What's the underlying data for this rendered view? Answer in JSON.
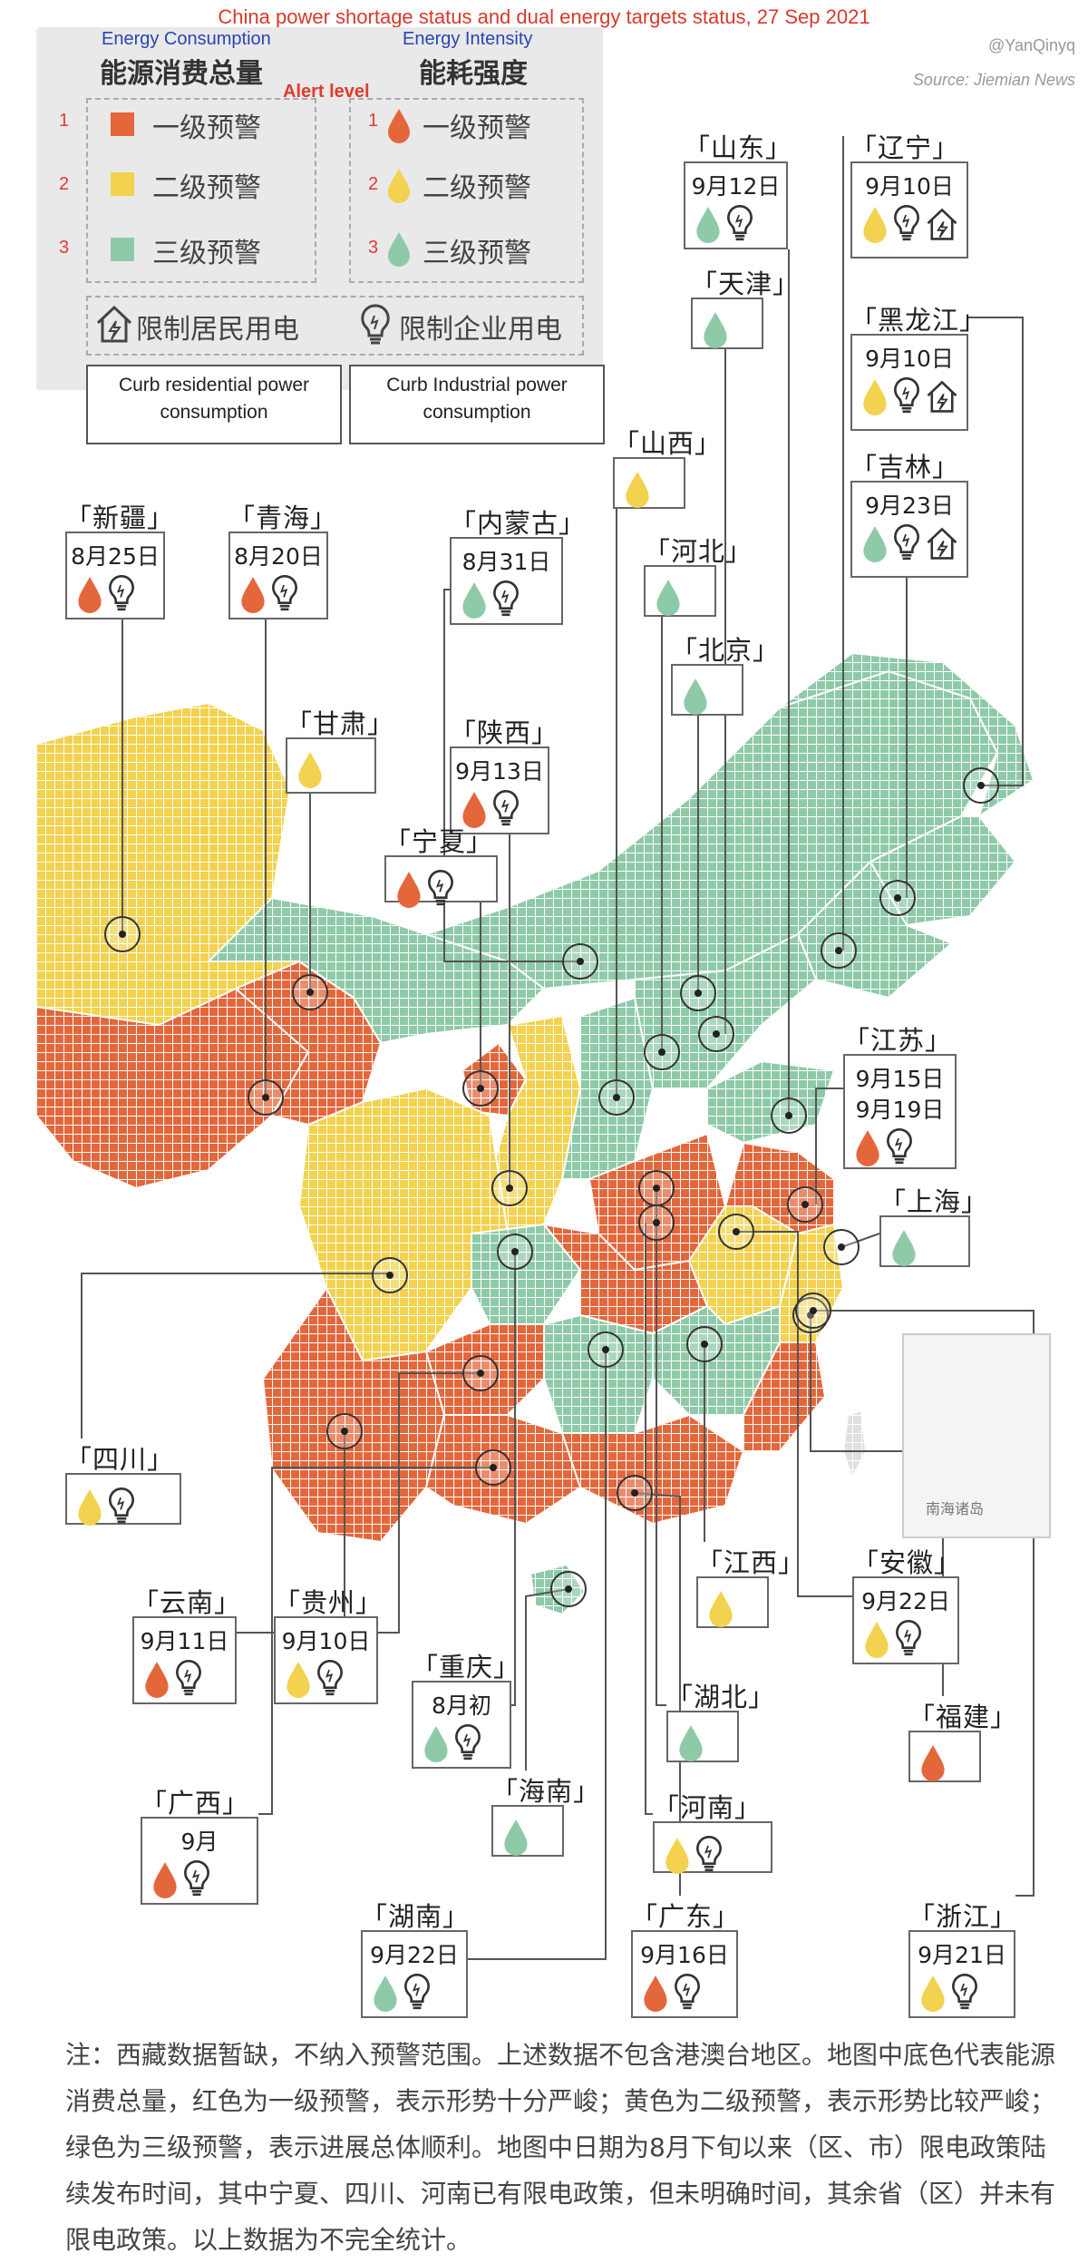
{
  "title": "China power shortage status and dual energy targets status, 27 Sep 2021",
  "handle": "@YanQinyq",
  "source": "Source: Jiemian News",
  "legend": {
    "consumption_en": "Energy Consumption",
    "consumption_cn": "能源消费总量",
    "intensity_en": "Energy Intensity",
    "intensity_cn": "能耗强度",
    "alert_level": "Alert level",
    "levels": [
      {
        "num": "1",
        "label": "一级预警",
        "color": "#e4673c"
      },
      {
        "num": "2",
        "label": "二级预警",
        "color": "#f2d24e"
      },
      {
        "num": "3",
        "label": "三级预警",
        "color": "#8fcaa8"
      }
    ],
    "residential_label": "限制居民用电",
    "industrial_label": "限制企业用电",
    "residential_en": "Curb residential power consumption",
    "industrial_en": "Curb Industrial power consumption"
  },
  "colors": {
    "red": "#e4673c",
    "yellow": "#f2d24e",
    "green": "#8fcaa8",
    "line": "#555555"
  },
  "map_label": "南海诸岛",
  "provinces": [
    {
      "key": "xinjiang",
      "name": "新疆",
      "date": "8月25日",
      "drop": "red",
      "industrial": true,
      "residential": false
    },
    {
      "key": "qinghai",
      "name": "青海",
      "date": "8月20日",
      "drop": "red",
      "industrial": true,
      "residential": false
    },
    {
      "key": "neimenggu",
      "name": "内蒙古",
      "date": "8月31日",
      "drop": "green",
      "industrial": true,
      "residential": false
    },
    {
      "key": "gansu",
      "name": "甘肃",
      "date": "",
      "drop": "yellow",
      "industrial": false,
      "residential": false
    },
    {
      "key": "shaanxi",
      "name": "陕西",
      "date": "9月13日",
      "drop": "red",
      "industrial": true,
      "residential": false
    },
    {
      "key": "ningxia",
      "name": "宁夏",
      "date": "",
      "drop": "red",
      "industrial": true,
      "residential": false
    },
    {
      "key": "shanxi",
      "name": "山西",
      "date": "",
      "drop": "yellow",
      "industrial": false,
      "residential": false
    },
    {
      "key": "hebei",
      "name": "河北",
      "date": "",
      "drop": "green",
      "industrial": false,
      "residential": false
    },
    {
      "key": "beijing",
      "name": "北京",
      "date": "",
      "drop": "green",
      "industrial": false,
      "residential": false
    },
    {
      "key": "shandong",
      "name": "山东",
      "date": "9月12日",
      "drop": "green",
      "industrial": true,
      "residential": false
    },
    {
      "key": "tianjin",
      "name": "天津",
      "date": "",
      "drop": "green",
      "industrial": false,
      "residential": false
    },
    {
      "key": "liaoning",
      "name": "辽宁",
      "date": "9月10日",
      "drop": "yellow",
      "industrial": true,
      "residential": true
    },
    {
      "key": "heilongjiang",
      "name": "黑龙江",
      "date": "9月10日",
      "drop": "yellow",
      "industrial": true,
      "residential": true
    },
    {
      "key": "jilin",
      "name": "吉林",
      "date": "9月23日",
      "drop": "green",
      "industrial": true,
      "residential": true
    },
    {
      "key": "jiangsu",
      "name": "江苏",
      "date": "9月15日",
      "date2": "9月19日",
      "drop": "red",
      "industrial": true,
      "residential": false
    },
    {
      "key": "shanghai",
      "name": "上海",
      "date": "",
      "drop": "green",
      "industrial": false,
      "residential": false
    },
    {
      "key": "sichuan",
      "name": "四川",
      "date": "",
      "drop": "yellow",
      "industrial": true,
      "residential": false
    },
    {
      "key": "yunnan",
      "name": "云南",
      "date": "9月11日",
      "drop": "red",
      "industrial": true,
      "residential": false
    },
    {
      "key": "guizhou",
      "name": "贵州",
      "date": "9月10日",
      "drop": "yellow",
      "industrial": true,
      "residential": false
    },
    {
      "key": "chongqing",
      "name": "重庆",
      "date": "8月初",
      "drop": "green",
      "industrial": true,
      "residential": false
    },
    {
      "key": "jiangxi",
      "name": "江西",
      "date": "",
      "drop": "yellow",
      "industrial": false,
      "residential": false
    },
    {
      "key": "anhui",
      "name": "安徽",
      "date": "9月22日",
      "drop": "yellow",
      "industrial": true,
      "residential": false
    },
    {
      "key": "hubei",
      "name": "湖北",
      "date": "",
      "drop": "green",
      "industrial": false,
      "residential": false
    },
    {
      "key": "fujian",
      "name": "福建",
      "date": "",
      "drop": "red",
      "industrial": false,
      "residential": false
    },
    {
      "key": "guangxi",
      "name": "广西",
      "date": "9月",
      "drop": "red",
      "industrial": true,
      "residential": false
    },
    {
      "key": "hainan",
      "name": "海南",
      "date": "",
      "drop": "green",
      "industrial": false,
      "residential": false
    },
    {
      "key": "henan",
      "name": "河南",
      "date": "",
      "drop": "yellow",
      "industrial": true,
      "residential": false
    },
    {
      "key": "hunan",
      "name": "湖南",
      "date": "9月22日",
      "drop": "green",
      "industrial": true,
      "residential": false
    },
    {
      "key": "guangdong",
      "name": "广东",
      "date": "9月16日",
      "drop": "red",
      "industrial": true,
      "residential": false
    },
    {
      "key": "zhejiang",
      "name": "浙江",
      "date": "9月21日",
      "drop": "yellow",
      "industrial": true,
      "residential": false
    }
  ],
  "note": "注：西藏数据暂缺，不纳入预警范围。上述数据不包含港澳台地区。地图中底色代表能源消费总量，红色为一级预警，表示形势十分严峻；黄色为二级预警，表示形势比较严峻；绿色为三级预警，表示进展总体顺利。地图中日期为8月下旬以来（区、市）限电政策陆续发布时间，其中宁夏、四川、河南已有限电政策，但未明确时间，其余省（区）并未有限电政策。以上数据为不完全统计。"
}
